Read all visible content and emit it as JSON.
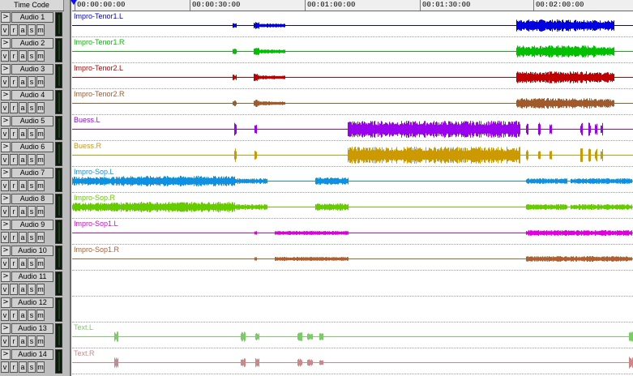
{
  "timecode_header": "Time Code",
  "ruler": {
    "ticks": [
      "00:00:00:00",
      "00:00:30:00",
      "00:01:00:00",
      "00:01:30:00",
      "00:02:00:00"
    ]
  },
  "track_buttons": {
    "expand": ">",
    "view": "v",
    "rec": "r",
    "auto": "a",
    "solo": "s",
    "mute": "m"
  },
  "tracks": [
    {
      "name": "Audio 1",
      "region": "Impro-Tenor1.L",
      "color": "#0000e0"
    },
    {
      "name": "Audio 2",
      "region": "Impro-Tenor1.R",
      "color": "#00c000"
    },
    {
      "name": "Audio 3",
      "region": "Impro-Tenor2.L",
      "color": "#c00000"
    },
    {
      "name": "Audio 4",
      "region": "Impro-Tenor2.R",
      "color": "#a05a2c"
    },
    {
      "name": "Audio 5",
      "region": "Buess.L",
      "color": "#9900ee"
    },
    {
      "name": "Audio 6",
      "region": "Buess.R",
      "color": "#cc9900"
    },
    {
      "name": "Audio 7",
      "region": "Impro-Sop.L",
      "color": "#1090e0"
    },
    {
      "name": "Audio 8",
      "region": "Impro-Sop.R",
      "color": "#66cc00"
    },
    {
      "name": "Audio 9",
      "region": "Impro-Sop1.L",
      "color": "#dd00dd"
    },
    {
      "name": "Audio 10",
      "region": "Impro-Sop1.R",
      "color": "#b06030"
    },
    {
      "name": "Audio 11",
      "region": "",
      "color": ""
    },
    {
      "name": "Audio 12",
      "region": "",
      "color": ""
    },
    {
      "name": "Audio 13",
      "region": "Text.L",
      "color": "#7acc66"
    },
    {
      "name": "Audio 14",
      "region": "Text.R",
      "color": "#cc8888"
    }
  ]
}
